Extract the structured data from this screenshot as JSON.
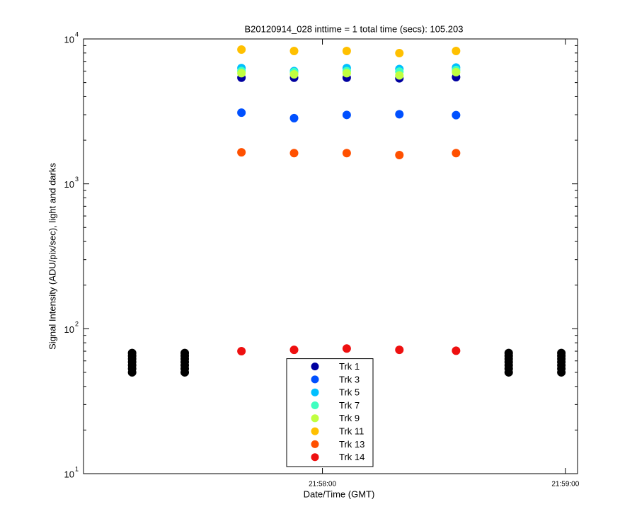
{
  "chart_data": {
    "type": "scatter",
    "title": "B20120914_028 inttime = 1 total time (secs): 105.203",
    "xlabel": "Date/Time (GMT)",
    "ylabel": "Signal Intensity (ADU/pix/sec), light and darks",
    "xlim": [
      "21:57:01",
      "21:59:03"
    ],
    "xticks": [
      "21:58:00",
      "21:59:00"
    ],
    "ylim": [
      10,
      10000
    ],
    "yscale": "log",
    "yticks": [
      {
        "value": 10,
        "label": "10",
        "exponent": "1"
      },
      {
        "value": 100,
        "label": "10",
        "exponent": "2"
      },
      {
        "value": 1000,
        "label": "10",
        "exponent": "3"
      },
      {
        "value": 10000,
        "label": "10",
        "exponent": "4"
      }
    ],
    "grid": false,
    "legend": "lower center",
    "series": [
      {
        "color": "#000000",
        "x": [
          "21:57:13",
          "21:57:13",
          "21:57:13",
          "21:57:13",
          "21:57:13",
          "21:57:13",
          "21:57:13",
          "21:57:26",
          "21:57:26",
          "21:57:26",
          "21:57:26",
          "21:57:26",
          "21:57:26",
          "21:57:26",
          "21:58:46",
          "21:58:46",
          "21:58:46",
          "21:58:46",
          "21:58:46",
          "21:58:46",
          "21:58:46",
          "21:58:59",
          "21:58:59",
          "21:58:59",
          "21:58:59",
          "21:58:59",
          "21:58:59",
          "21:58:59"
        ],
        "values": [
          50,
          53,
          56,
          59,
          62,
          65,
          68,
          50,
          53,
          56,
          59,
          62,
          65,
          68,
          50,
          53,
          56,
          59,
          62,
          65,
          68,
          50,
          53,
          56,
          59,
          62,
          65,
          68
        ]
      },
      {
        "name": "Trk 1",
        "color": "#0000a0",
        "x": [
          "21:57:40",
          "21:57:53",
          "21:58:06",
          "21:58:19",
          "21:58:33"
        ],
        "values": [
          5400,
          5400,
          5400,
          5350,
          5450
        ]
      },
      {
        "name": "Trk 3",
        "color": "#0050ff",
        "x": [
          "21:57:40",
          "21:57:53",
          "21:58:06",
          "21:58:19",
          "21:58:33"
        ],
        "values": [
          3100,
          2840,
          2990,
          3020,
          2980
        ]
      },
      {
        "name": "Trk 5",
        "color": "#00c0ff",
        "x": [
          "21:57:40",
          "21:57:53",
          "21:58:06",
          "21:58:19",
          "21:58:33"
        ],
        "values": [
          6300,
          6000,
          6300,
          6200,
          6350
        ]
      },
      {
        "name": "Trk 7",
        "color": "#40ffc0",
        "x": [
          "21:57:40",
          "21:57:53",
          "21:58:06",
          "21:58:19",
          "21:58:33"
        ],
        "values": [
          6000,
          5900,
          6000,
          5950,
          6100
        ]
      },
      {
        "name": "Trk 9",
        "color": "#c0ff40",
        "x": [
          "21:57:40",
          "21:57:53",
          "21:58:06",
          "21:58:19",
          "21:58:33"
        ],
        "values": [
          5800,
          5700,
          5800,
          5600,
          5900
        ]
      },
      {
        "name": "Trk 11",
        "color": "#ffc000",
        "x": [
          "21:57:40",
          "21:57:53",
          "21:58:06",
          "21:58:19",
          "21:58:33"
        ],
        "values": [
          8450,
          8260,
          8260,
          7980,
          8260
        ]
      },
      {
        "name": "Trk 13",
        "color": "#ff5000",
        "x": [
          "21:57:40",
          "21:57:53",
          "21:58:06",
          "21:58:19",
          "21:58:33"
        ],
        "values": [
          1650,
          1630,
          1630,
          1580,
          1630
        ]
      },
      {
        "name": "Trk 14",
        "color": "#ee1010",
        "x": [
          "21:57:40",
          "21:57:53",
          "21:58:06",
          "21:58:19",
          "21:58:33"
        ],
        "values": [
          70,
          71.5,
          73,
          71.5,
          70.5
        ]
      }
    ]
  }
}
